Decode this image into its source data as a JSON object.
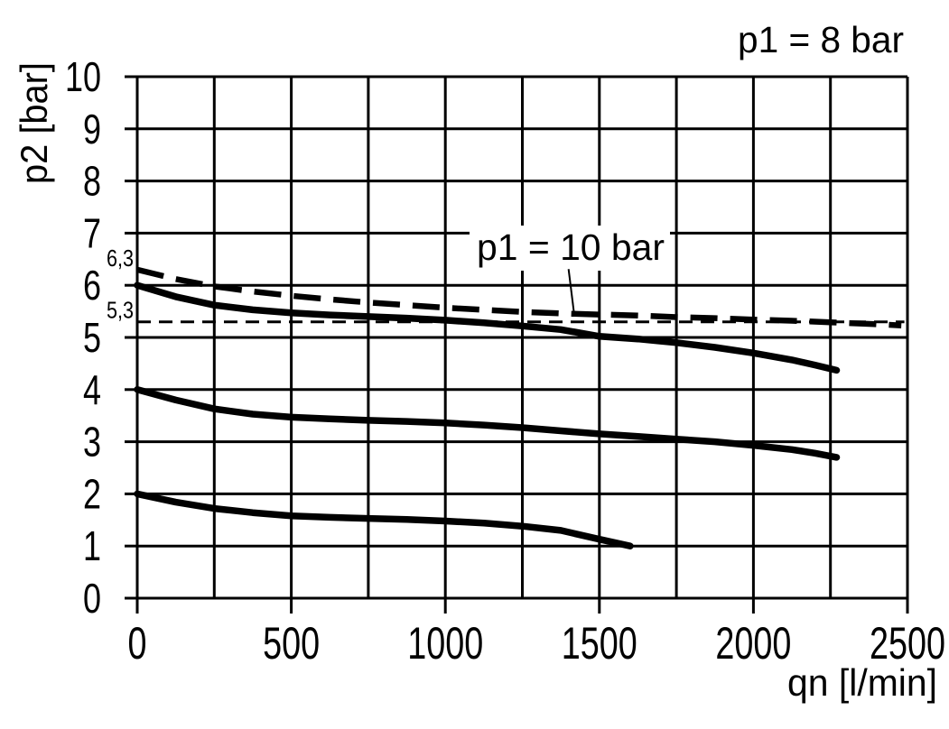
{
  "colors": {
    "ink": "#000000",
    "background": "#ffffff"
  },
  "chart_data": {
    "type": "line",
    "title": "p1 = 8 bar",
    "xlabel": "qn [l/min]",
    "ylabel": "p2 [bar]",
    "xlim": [
      0,
      2500
    ],
    "ylim": [
      0,
      10
    ],
    "grid": true,
    "x_grid_step": 250,
    "y_grid_step": 1,
    "x_tick_values": [
      0,
      500,
      1000,
      1500,
      2000,
      2500
    ],
    "x_tick_labels": [
      "0",
      "500",
      "1000",
      "1500",
      "2000",
      "2500"
    ],
    "y_tick_values": [
      0,
      1,
      2,
      3,
      4,
      5,
      6,
      7,
      8,
      9,
      10
    ],
    "y_tick_labels": [
      "0",
      "1",
      "2",
      "3",
      "4",
      "5",
      "6",
      "7",
      "8",
      "9",
      "10"
    ],
    "curve_labels": [
      {
        "text": "6,3",
        "value": 6.3
      },
      {
        "text": "5,3",
        "value": 5.3
      }
    ],
    "annotation": {
      "text": "p1 = 10 bar",
      "leader_from": [
        1400,
        6.31
      ],
      "leader_to": [
        1417,
        5.5
      ]
    },
    "series": [
      {
        "key": "curve-p1-10bar-dashed",
        "name": "p1 = 10 bar curve (starts at 6,3 bar)",
        "style": "dashed-thick",
        "points": [
          [
            0,
            6.3
          ],
          [
            125,
            6.12
          ],
          [
            250,
            5.98
          ],
          [
            375,
            5.88
          ],
          [
            500,
            5.8
          ],
          [
            625,
            5.73
          ],
          [
            750,
            5.67
          ],
          [
            875,
            5.62
          ],
          [
            1000,
            5.57
          ],
          [
            1125,
            5.53
          ],
          [
            1250,
            5.49
          ],
          [
            1375,
            5.46
          ],
          [
            1500,
            5.44
          ],
          [
            1625,
            5.42
          ],
          [
            1750,
            5.39
          ],
          [
            1875,
            5.37
          ],
          [
            2000,
            5.34
          ],
          [
            2125,
            5.32
          ],
          [
            2250,
            5.29
          ],
          [
            2375,
            5.26
          ],
          [
            2480,
            5.23
          ]
        ]
      },
      {
        "key": "reference-line-5-3-bar",
        "name": "5,3 bar reference line",
        "style": "dashed-thin",
        "points": [
          [
            0,
            5.3
          ],
          [
            2490,
            5.3
          ]
        ]
      },
      {
        "key": "curve-p1-8bar-6bar-setting",
        "name": "p1 = 8 bar curve, 6 bar setting",
        "style": "solid-thick",
        "points": [
          [
            0,
            6.0
          ],
          [
            125,
            5.78
          ],
          [
            250,
            5.62
          ],
          [
            375,
            5.53
          ],
          [
            500,
            5.47
          ],
          [
            625,
            5.43
          ],
          [
            750,
            5.4
          ],
          [
            875,
            5.37
          ],
          [
            1000,
            5.33
          ],
          [
            1125,
            5.28
          ],
          [
            1250,
            5.22
          ],
          [
            1375,
            5.15
          ],
          [
            1500,
            5.02
          ],
          [
            1625,
            4.97
          ],
          [
            1750,
            4.9
          ],
          [
            1875,
            4.81
          ],
          [
            2000,
            4.7
          ],
          [
            2125,
            4.57
          ],
          [
            2200,
            4.47
          ],
          [
            2270,
            4.37
          ]
        ]
      },
      {
        "key": "curve-4bar-setting",
        "name": "4 bar setting curve",
        "style": "solid-thick",
        "points": [
          [
            0,
            4.0
          ],
          [
            125,
            3.8
          ],
          [
            250,
            3.63
          ],
          [
            375,
            3.53
          ],
          [
            500,
            3.47
          ],
          [
            625,
            3.44
          ],
          [
            750,
            3.41
          ],
          [
            875,
            3.39
          ],
          [
            1000,
            3.36
          ],
          [
            1125,
            3.32
          ],
          [
            1250,
            3.27
          ],
          [
            1375,
            3.21
          ],
          [
            1500,
            3.15
          ],
          [
            1625,
            3.1
          ],
          [
            1750,
            3.05
          ],
          [
            1875,
            3.0
          ],
          [
            2000,
            2.93
          ],
          [
            2125,
            2.85
          ],
          [
            2200,
            2.78
          ],
          [
            2270,
            2.7
          ]
        ]
      },
      {
        "key": "curve-2bar-setting",
        "name": "2 bar setting curve",
        "style": "solid-thick",
        "points": [
          [
            0,
            2.0
          ],
          [
            125,
            1.84
          ],
          [
            250,
            1.72
          ],
          [
            375,
            1.64
          ],
          [
            500,
            1.58
          ],
          [
            625,
            1.55
          ],
          [
            750,
            1.53
          ],
          [
            875,
            1.51
          ],
          [
            1000,
            1.48
          ],
          [
            1125,
            1.44
          ],
          [
            1250,
            1.38
          ],
          [
            1375,
            1.3
          ],
          [
            1500,
            1.13
          ],
          [
            1600,
            1.0
          ]
        ]
      }
    ]
  }
}
